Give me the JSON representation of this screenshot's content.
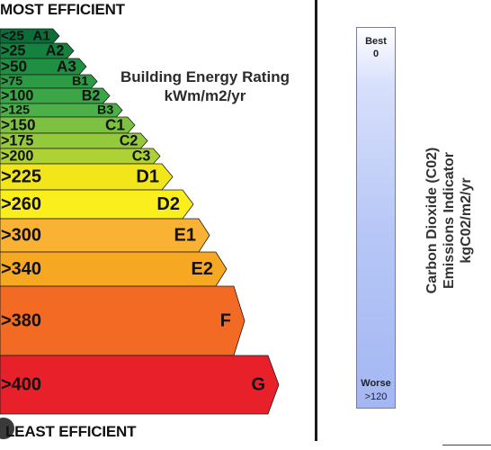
{
  "headings": {
    "top": "MOST EFFICIENT",
    "bottom": "LEAST EFFICIENT"
  },
  "rating_title": {
    "line1": "Building Energy Rating",
    "line2": "kWm/m2/yr"
  },
  "bands": [
    {
      "range": "<25",
      "grade": "A1",
      "color": "#0b6e3a"
    },
    {
      "range": ">25",
      "grade": "A2",
      "color": "#15813e"
    },
    {
      "range": ">50",
      "grade": "A3",
      "color": "#1f8f41"
    },
    {
      "range": ">75",
      "grade": "B1",
      "color": "#2d9a45"
    },
    {
      "range": ">100",
      "grade": "B2",
      "color": "#3aa646"
    },
    {
      "range": ">125",
      "grade": "B3",
      "color": "#4cb048"
    },
    {
      "range": ">150",
      "grade": "C1",
      "color": "#7cc142"
    },
    {
      "range": ">175",
      "grade": "C2",
      "color": "#95c93c"
    },
    {
      "range": ">200",
      "grade": "C3",
      "color": "#aed136"
    },
    {
      "range": ">225",
      "grade": "D1",
      "color": "#f2e61a"
    },
    {
      "range": ">260",
      "grade": "D2",
      "color": "#fbee1d"
    },
    {
      "range": ">300",
      "grade": "E1",
      "color": "#f9b233"
    },
    {
      "range": ">340",
      "grade": "E2",
      "color": "#f7a823"
    },
    {
      "range": ">380",
      "grade": "F",
      "color": "#f26a23"
    },
    {
      "range": ">400",
      "grade": "G",
      "color": "#e8202a"
    }
  ],
  "co2_scale": {
    "best_label": "Best",
    "best_value": "0",
    "worse_label": "Worse",
    "worse_value": ">120",
    "title_line1": "Carbon Dioxide (C02)",
    "title_line2": "Emissions Indicator",
    "title_line3": "kgC02/m2/yr"
  }
}
